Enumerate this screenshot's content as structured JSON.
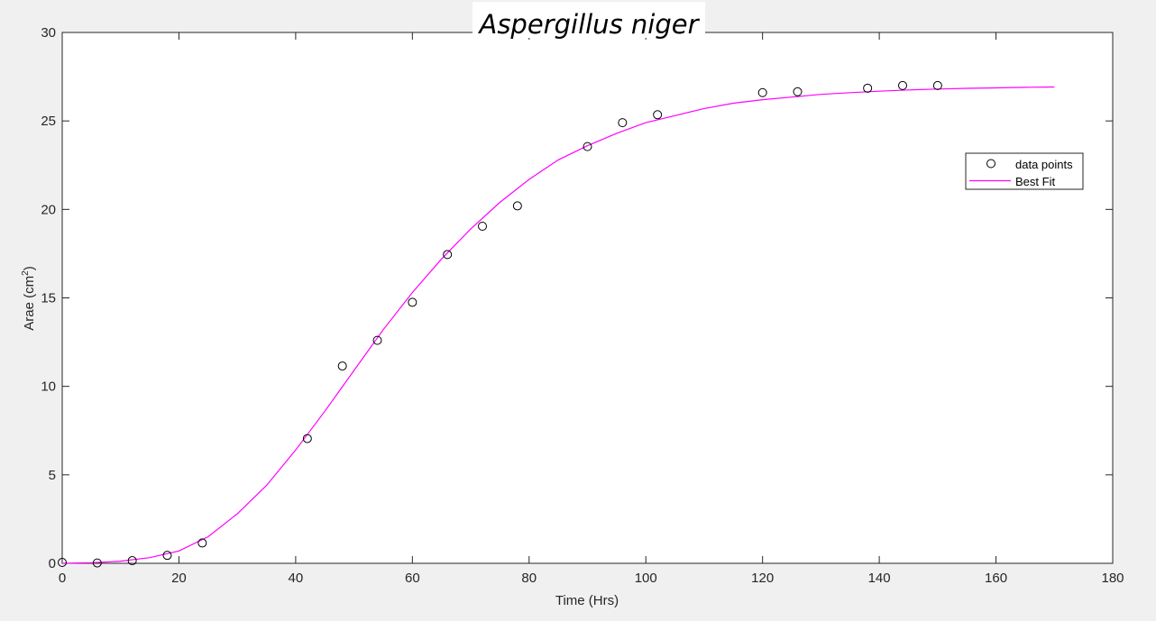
{
  "chart_data": {
    "type": "scatter",
    "title": "Aspergillus niger",
    "xlabel": "Time (Hrs)",
    "ylabel": "Arae (cm",
    "ylabel_sup": "2",
    "ylabel_close": ")",
    "xlim": [
      0,
      180
    ],
    "ylim": [
      0,
      30
    ],
    "xticks": [
      0,
      20,
      40,
      60,
      80,
      100,
      120,
      140,
      160,
      180
    ],
    "yticks": [
      0,
      5,
      10,
      15,
      20,
      25,
      30
    ],
    "grid": false,
    "legend_position": "upper-right",
    "series": [
      {
        "name": "data points",
        "type": "scatter",
        "color": "#000000",
        "x": [
          0,
          6,
          12,
          18,
          24,
          42,
          48,
          54,
          60,
          66,
          72,
          78,
          90,
          96,
          102,
          120,
          126,
          138,
          144,
          150
        ],
        "y": [
          0.05,
          0.02,
          0.15,
          0.45,
          1.15,
          7.05,
          11.15,
          12.6,
          14.75,
          17.45,
          19.05,
          20.2,
          23.55,
          24.9,
          25.35,
          26.6,
          26.65,
          26.85,
          27.0,
          27.0
        ]
      },
      {
        "name": "Best Fit",
        "type": "line",
        "color": "#ff00ff",
        "x": [
          0,
          5,
          10,
          15,
          20,
          25,
          30,
          35,
          40,
          45,
          50,
          55,
          60,
          65,
          70,
          75,
          80,
          85,
          90,
          95,
          100,
          105,
          110,
          115,
          120,
          125,
          130,
          135,
          140,
          145,
          150,
          155,
          160,
          165,
          170
        ],
        "y": [
          0,
          0.03,
          0.12,
          0.32,
          0.7,
          1.5,
          2.8,
          4.4,
          6.4,
          8.6,
          10.9,
          13.2,
          15.3,
          17.2,
          18.9,
          20.4,
          21.7,
          22.8,
          23.6,
          24.3,
          24.9,
          25.3,
          25.7,
          26.0,
          26.2,
          26.35,
          26.5,
          26.6,
          26.68,
          26.75,
          26.8,
          26.84,
          26.87,
          26.9,
          26.92
        ]
      }
    ]
  }
}
